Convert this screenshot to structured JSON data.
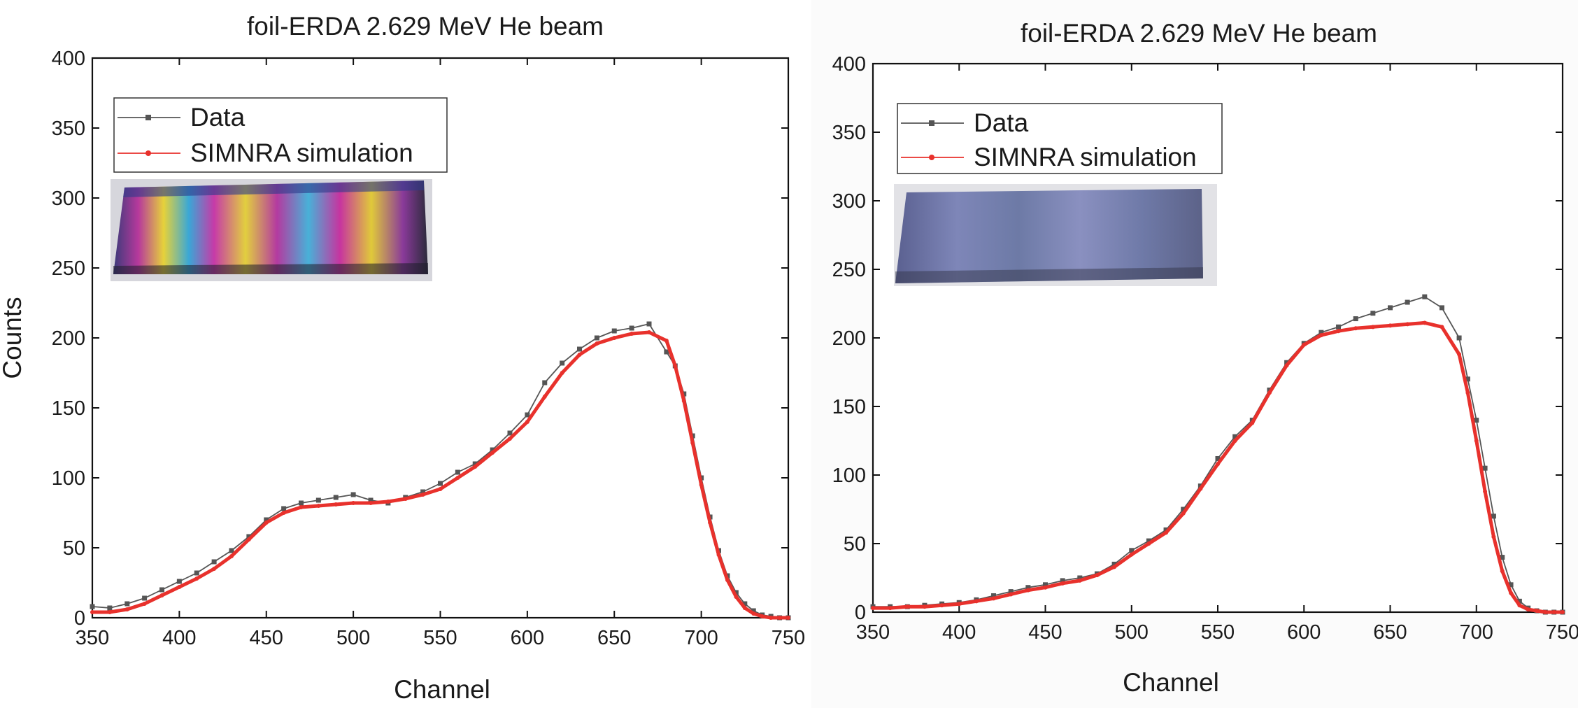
{
  "chart_data": [
    {
      "type": "line",
      "title": "foil-ERDA 2.629 MeV He beam",
      "xlabel": "Channel",
      "ylabel": "Counts",
      "xlim": [
        350,
        750
      ],
      "ylim": [
        0,
        400
      ],
      "xticks": [
        350,
        400,
        450,
        500,
        550,
        600,
        650,
        700,
        750
      ],
      "yticks": [
        0,
        50,
        100,
        150,
        200,
        250,
        300,
        350,
        400
      ],
      "legend_position": "top-left",
      "inset": "photo of sample plate with rainbow (purple, yellow, cyan) interference pattern",
      "series": [
        {
          "name": "Data",
          "color": "#555555",
          "marker": "square",
          "x": [
            350,
            360,
            370,
            380,
            390,
            400,
            410,
            420,
            430,
            440,
            450,
            460,
            470,
            480,
            490,
            500,
            510,
            520,
            530,
            540,
            550,
            560,
            570,
            580,
            590,
            600,
            610,
            620,
            630,
            640,
            650,
            660,
            670,
            680,
            685,
            690,
            695,
            700,
            705,
            710,
            715,
            720,
            725,
            730,
            735,
            740,
            745,
            750
          ],
          "y": [
            8,
            7,
            10,
            14,
            20,
            26,
            32,
            40,
            48,
            58,
            70,
            78,
            82,
            84,
            86,
            88,
            84,
            82,
            86,
            90,
            96,
            104,
            110,
            120,
            132,
            145,
            168,
            182,
            192,
            200,
            205,
            207,
            210,
            190,
            180,
            160,
            130,
            100,
            72,
            48,
            30,
            18,
            10,
            5,
            2,
            1,
            0,
            0
          ]
        },
        {
          "name": "SIMNRA simulation",
          "color": "#e8312c",
          "marker": "circle",
          "x": [
            350,
            360,
            370,
            380,
            390,
            400,
            410,
            420,
            430,
            440,
            450,
            460,
            470,
            480,
            490,
            500,
            510,
            520,
            530,
            540,
            550,
            560,
            570,
            580,
            590,
            600,
            610,
            620,
            630,
            640,
            650,
            660,
            670,
            680,
            685,
            690,
            695,
            700,
            705,
            710,
            715,
            720,
            725,
            730,
            735,
            740,
            745,
            750
          ],
          "y": [
            4,
            4,
            6,
            10,
            16,
            22,
            28,
            35,
            44,
            56,
            68,
            75,
            79,
            80,
            81,
            82,
            82,
            83,
            85,
            88,
            92,
            100,
            108,
            118,
            128,
            140,
            158,
            175,
            188,
            196,
            200,
            203,
            204,
            198,
            180,
            155,
            125,
            95,
            68,
            45,
            27,
            15,
            7,
            3,
            1,
            0,
            0,
            0
          ]
        }
      ]
    },
    {
      "type": "line",
      "title": "foil-ERDA 2.629 MeV He beam",
      "xlabel": "Channel",
      "ylabel": "",
      "xlim": [
        350,
        750
      ],
      "ylim": [
        0,
        400
      ],
      "xticks": [
        350,
        400,
        450,
        500,
        550,
        600,
        650,
        700,
        750
      ],
      "yticks": [
        0,
        50,
        100,
        150,
        200,
        250,
        300,
        350,
        400
      ],
      "legend_position": "top-left",
      "inset": "photo of sample plate with faint bluish-grey pattern",
      "series": [
        {
          "name": "Data",
          "color": "#555555",
          "marker": "square",
          "x": [
            350,
            360,
            370,
            380,
            390,
            400,
            410,
            420,
            430,
            440,
            450,
            460,
            470,
            480,
            490,
            500,
            510,
            520,
            530,
            540,
            550,
            560,
            570,
            580,
            590,
            600,
            610,
            620,
            630,
            640,
            650,
            660,
            670,
            680,
            690,
            695,
            700,
            705,
            710,
            715,
            720,
            725,
            730,
            735,
            740,
            745,
            750
          ],
          "y": [
            4,
            4,
            4,
            5,
            6,
            7,
            9,
            12,
            15,
            18,
            20,
            23,
            25,
            28,
            35,
            45,
            52,
            60,
            75,
            92,
            112,
            128,
            140,
            162,
            182,
            196,
            204,
            208,
            214,
            218,
            222,
            226,
            230,
            222,
            200,
            170,
            140,
            105,
            70,
            40,
            20,
            8,
            3,
            1,
            0,
            0,
            0
          ]
        },
        {
          "name": "SIMNRA simulation",
          "color": "#e8312c",
          "marker": "circle",
          "x": [
            350,
            360,
            370,
            380,
            390,
            400,
            410,
            420,
            430,
            440,
            450,
            460,
            470,
            480,
            490,
            500,
            510,
            520,
            530,
            540,
            550,
            560,
            570,
            580,
            590,
            600,
            610,
            620,
            630,
            640,
            650,
            660,
            670,
            680,
            690,
            695,
            700,
            705,
            710,
            715,
            720,
            725,
            730,
            735,
            740,
            745,
            750
          ],
          "y": [
            3,
            3,
            4,
            4,
            5,
            6,
            8,
            10,
            13,
            16,
            18,
            21,
            23,
            27,
            33,
            42,
            50,
            58,
            72,
            90,
            108,
            125,
            138,
            160,
            180,
            195,
            202,
            205,
            207,
            208,
            209,
            210,
            211,
            208,
            188,
            160,
            125,
            88,
            55,
            30,
            14,
            5,
            2,
            1,
            0,
            0,
            0
          ]
        }
      ]
    }
  ]
}
